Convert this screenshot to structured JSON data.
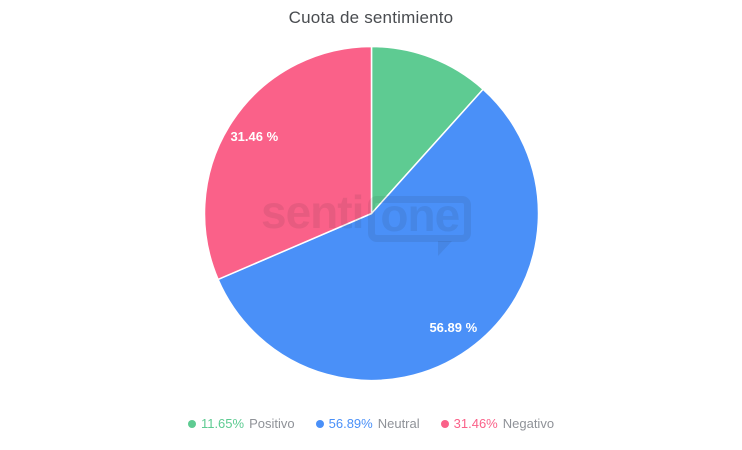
{
  "chart_data": {
    "type": "pie",
    "title": "Cuota de sentimiento",
    "legend_position": "bottom",
    "total_percent": 100,
    "slices": [
      {
        "name": "Positivo",
        "value": 11.65,
        "color": "#5ecb92",
        "legend_percent": "11.65%",
        "slice_label": ""
      },
      {
        "name": "Neutral",
        "value": 56.89,
        "color": "#4a90f8",
        "legend_percent": "56.89%",
        "slice_label": "56.89 %"
      },
      {
        "name": "Negativo",
        "value": 31.46,
        "color": "#fa6189",
        "legend_percent": "31.46%",
        "slice_label": "31.46 %"
      }
    ]
  },
  "watermark": {
    "text_left": "senti",
    "text_right": "one"
  },
  "colors": {
    "background": "#ffffff",
    "title_text": "#494c50",
    "legend_label_text": "#8f9298",
    "slice_label_text": "#ffffff"
  }
}
